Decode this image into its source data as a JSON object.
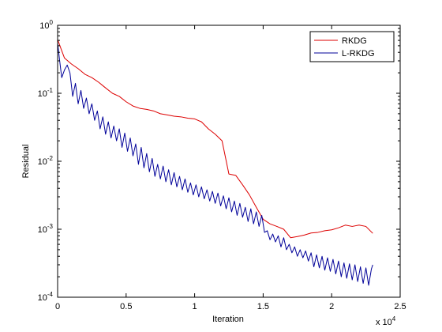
{
  "chart_data": {
    "type": "line",
    "title": "",
    "xlabel": "Iteration",
    "ylabel": "Residual",
    "x_scale": "linear",
    "y_scale": "log",
    "xlim": [
      0,
      25000
    ],
    "ylim": [
      0.0001,
      1
    ],
    "x_ticks": [
      0,
      5000,
      10000,
      15000,
      20000,
      25000
    ],
    "x_tick_labels": [
      "0",
      "0.5",
      "1",
      "1.5",
      "2",
      "2.5"
    ],
    "x_multiplier": {
      "base": "x 10",
      "exponent": "4"
    },
    "y_ticks": [
      0.0001,
      0.001,
      0.01,
      0.1,
      1
    ],
    "y_tick_labels": [
      {
        "base": "10",
        "exponent": "-4"
      },
      {
        "base": "10",
        "exponent": "-3"
      },
      {
        "base": "10",
        "exponent": "-2"
      },
      {
        "base": "10",
        "exponent": "-1"
      },
      {
        "base": "10",
        "exponent": "0"
      }
    ],
    "grid": false,
    "legend_position": "top-right",
    "series": [
      {
        "name": "RKDG",
        "color": "#dd0000",
        "x": [
          0,
          250,
          500,
          1000,
          1500,
          2000,
          2500,
          3000,
          3500,
          4000,
          4500,
          5000,
          5500,
          6000,
          6500,
          7000,
          7500,
          8000,
          8500,
          9000,
          9500,
          10000,
          10500,
          11000,
          11500,
          12000,
          12500,
          13000,
          13500,
          14000,
          14500,
          15000,
          15500,
          16000,
          16500,
          17000,
          17500,
          18000,
          18500,
          19000,
          19500,
          20000,
          20500,
          21000,
          21500,
          22000,
          22500,
          23000
        ],
        "y": [
          0.62,
          0.45,
          0.33,
          0.27,
          0.23,
          0.19,
          0.17,
          0.145,
          0.12,
          0.1,
          0.09,
          0.075,
          0.065,
          0.06,
          0.058,
          0.055,
          0.05,
          0.048,
          0.046,
          0.045,
          0.043,
          0.042,
          0.038,
          0.03,
          0.025,
          0.02,
          0.0065,
          0.0062,
          0.0045,
          0.0032,
          0.0021,
          0.0014,
          0.0012,
          0.0011,
          0.001,
          0.00075,
          0.00078,
          0.00082,
          0.00088,
          0.0009,
          0.00095,
          0.00098,
          0.00105,
          0.00115,
          0.0011,
          0.00115,
          0.0011,
          0.00087
        ]
      },
      {
        "name": "L-RKDG",
        "color": "#000099",
        "x": [
          0,
          150,
          300,
          500,
          700,
          900,
          1100,
          1300,
          1500,
          1700,
          1900,
          2100,
          2300,
          2500,
          2700,
          2900,
          3100,
          3300,
          3500,
          3700,
          3900,
          4100,
          4300,
          4500,
          4700,
          4900,
          5100,
          5300,
          5500,
          5700,
          5900,
          6100,
          6300,
          6500,
          6700,
          6900,
          7100,
          7300,
          7500,
          7700,
          7900,
          8100,
          8300,
          8500,
          8700,
          8900,
          9100,
          9300,
          9500,
          9700,
          9900,
          10100,
          10300,
          10500,
          10700,
          10900,
          11100,
          11300,
          11500,
          11700,
          11900,
          12100,
          12300,
          12500,
          12700,
          12900,
          13100,
          13300,
          13500,
          13700,
          13900,
          14100,
          14300,
          14500,
          14700,
          14900,
          15100,
          15300,
          15500,
          15700,
          15900,
          16100,
          16300,
          16500,
          16700,
          16900,
          17100,
          17300,
          17500,
          17700,
          17900,
          18100,
          18300,
          18500,
          18700,
          18900,
          19100,
          19300,
          19500,
          19700,
          19900,
          20100,
          20300,
          20500,
          20700,
          20900,
          21100,
          21300,
          21500,
          21700,
          21900,
          22100,
          22300,
          22500,
          22700,
          22900,
          23000
        ],
        "y": [
          0.55,
          0.3,
          0.17,
          0.22,
          0.26,
          0.2,
          0.09,
          0.14,
          0.07,
          0.11,
          0.06,
          0.085,
          0.05,
          0.07,
          0.04,
          0.055,
          0.03,
          0.045,
          0.025,
          0.038,
          0.022,
          0.033,
          0.02,
          0.03,
          0.016,
          0.026,
          0.014,
          0.022,
          0.012,
          0.018,
          0.009,
          0.016,
          0.008,
          0.013,
          0.007,
          0.011,
          0.006,
          0.009,
          0.0055,
          0.0085,
          0.005,
          0.0075,
          0.0045,
          0.0068,
          0.0042,
          0.006,
          0.0038,
          0.0055,
          0.0035,
          0.0048,
          0.0032,
          0.0045,
          0.003,
          0.0042,
          0.0028,
          0.0038,
          0.0026,
          0.0036,
          0.0024,
          0.0034,
          0.0022,
          0.0031,
          0.002,
          0.0029,
          0.0018,
          0.0026,
          0.0016,
          0.0024,
          0.0015,
          0.0021,
          0.0013,
          0.002,
          0.0012,
          0.0018,
          0.0011,
          0.0016,
          0.0009,
          0.00095,
          0.0007,
          0.00085,
          0.00065,
          0.0008,
          0.00055,
          0.00075,
          0.0005,
          0.0006,
          0.00045,
          0.00055,
          0.0004,
          0.0005,
          0.00038,
          0.00048,
          0.00034,
          0.00045,
          0.00028,
          0.00042,
          0.00027,
          0.0004,
          0.00025,
          0.00038,
          0.00024,
          0.00036,
          0.00022,
          0.00034,
          0.0002,
          0.00032,
          0.00019,
          0.00031,
          0.00018,
          0.0003,
          0.00017,
          0.00028,
          0.00016,
          0.00027,
          0.00015,
          0.00026,
          0.0003
        ]
      }
    ]
  }
}
